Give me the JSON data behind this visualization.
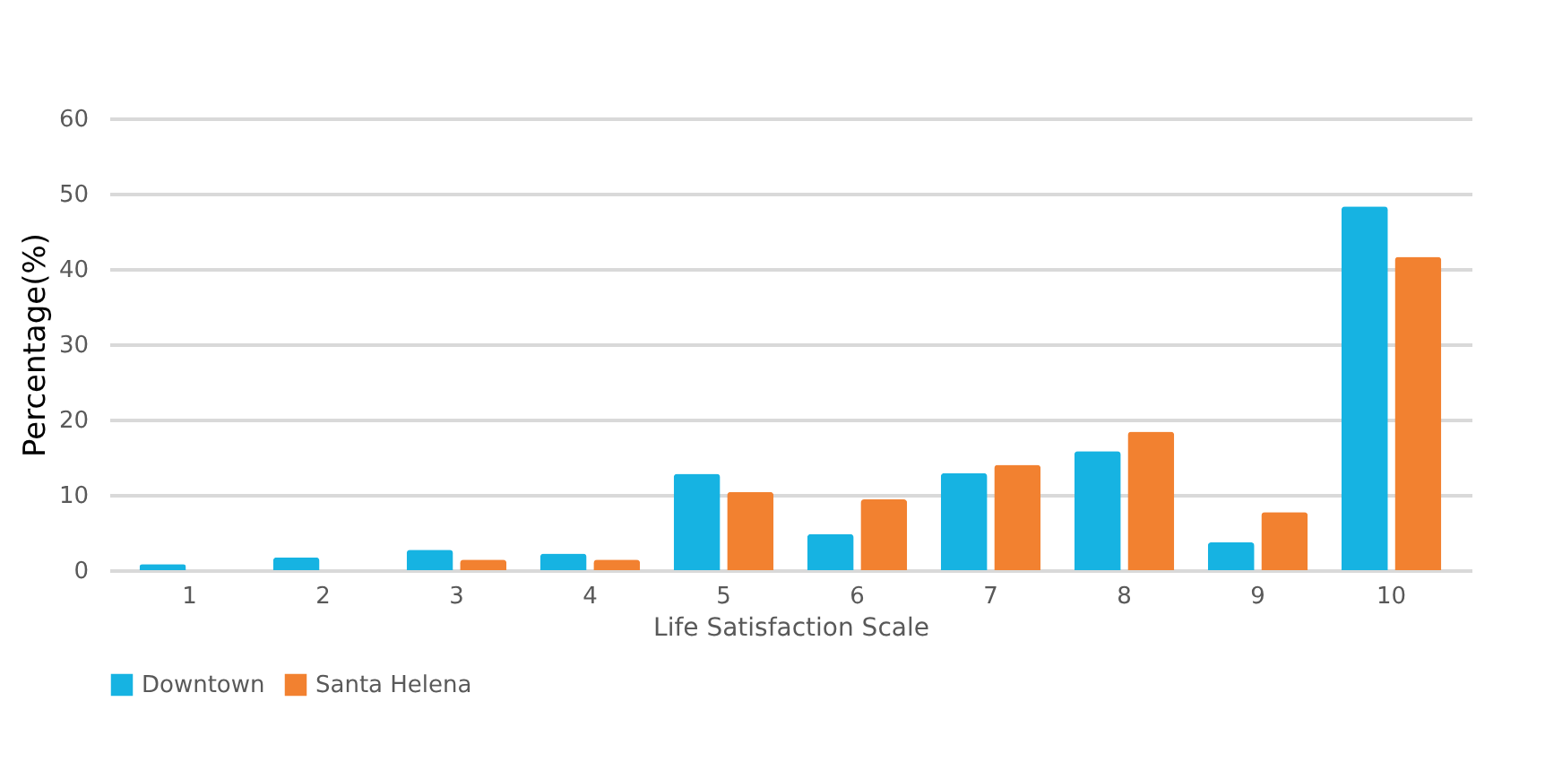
{
  "chart_data": {
    "type": "bar",
    "xlabel": "Life Satisfaction Scale",
    "ylabel": "Percentage(%)",
    "categories": [
      "1",
      "2",
      "3",
      "4",
      "5",
      "6",
      "7",
      "8",
      "9",
      "10"
    ],
    "series": [
      {
        "name": "Downtown",
        "color": "#16b3e2",
        "values": [
          0.8,
          1.7,
          2.7,
          2.2,
          12.8,
          4.8,
          12.9,
          15.8,
          3.7,
          48.3
        ]
      },
      {
        "name": "Santa Helena",
        "color": "#f28130",
        "values": [
          0,
          0,
          1.4,
          1.4,
          10.4,
          9.4,
          14.0,
          18.4,
          7.7,
          41.6
        ]
      }
    ],
    "ylim": [
      0,
      60
    ],
    "yticks": [
      0,
      10,
      20,
      30,
      40,
      50,
      60
    ],
    "grid": "y",
    "legend": "bottom"
  }
}
